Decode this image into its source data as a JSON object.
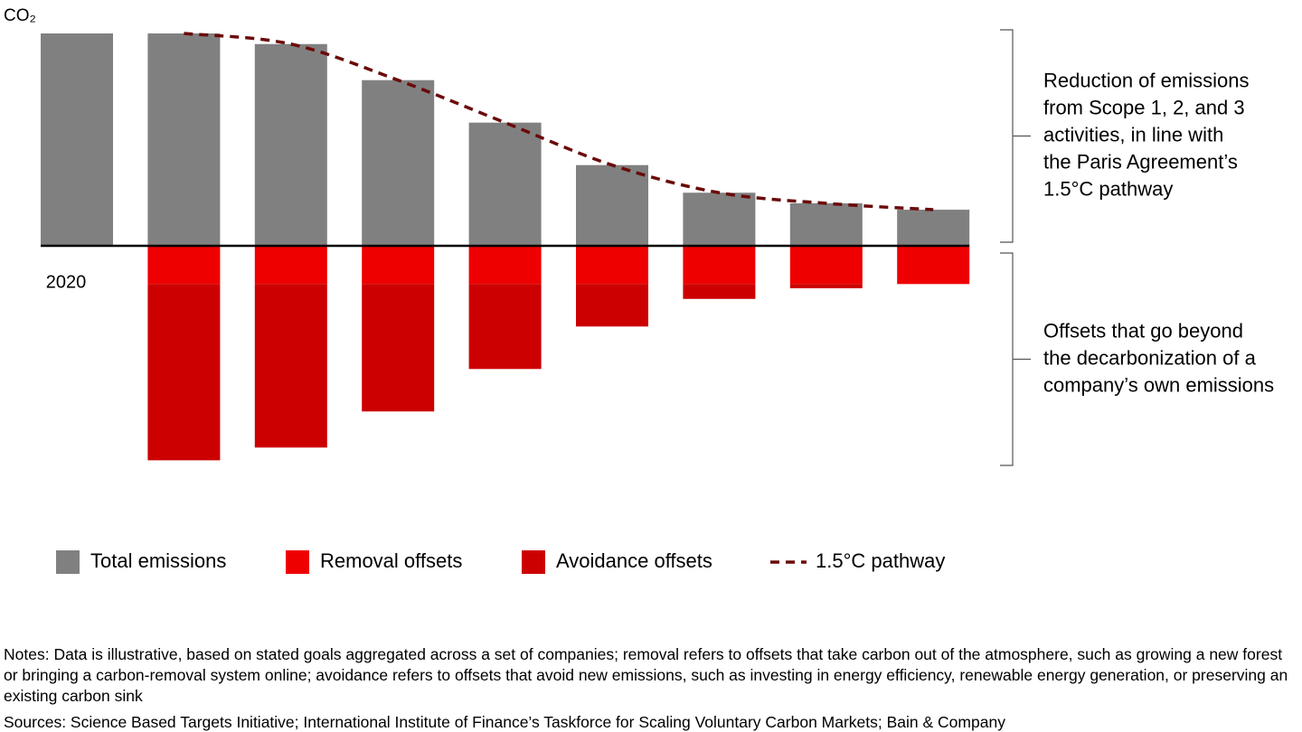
{
  "chart_data": {
    "type": "bar",
    "y_label": "CO₂",
    "categories": [
      "2020",
      null,
      null,
      null,
      null,
      null,
      null,
      null,
      null
    ],
    "series": [
      {
        "name": "Total emissions",
        "color": "#808080",
        "values": [
          100,
          100,
          95,
          78,
          58,
          38,
          25,
          20,
          17
        ]
      },
      {
        "name": "Removal offsets",
        "color": "#ee0000",
        "values": [
          null,
          -18,
          -18,
          -18,
          -18,
          -18,
          -18,
          -18,
          -18
        ]
      },
      {
        "name": "Avoidance offsets",
        "color": "#cc0000",
        "values": [
          null,
          -83,
          -77,
          -60,
          -40,
          -20,
          -7,
          -2,
          0
        ]
      },
      {
        "name": "1.5°C pathway",
        "type": "line",
        "color": "#6b0a0a",
        "dashed": true,
        "values": [
          null,
          100,
          95,
          78,
          58,
          38,
          25,
          20,
          17
        ]
      }
    ],
    "ylim": [
      -105,
      100
    ],
    "annotations": [
      {
        "lines": [
          "Reduction of emissions",
          "from Scope 1, 2, and 3",
          "activities, in line with",
          "the Paris Agreement’s",
          "1.5°C pathway"
        ]
      },
      {
        "lines": [
          "Offsets that go beyond",
          "the decarbonization of a",
          "company’s own emissions"
        ]
      }
    ],
    "legend": "bottom",
    "notes": "Notes: Data is illustrative, based on stated goals aggregated across a set of companies; removal refers to offsets that take carbon out of the atmosphere, such as growing a new forest or bringing a carbon-removal system online; avoidance refers to offsets that avoid new emissions, such as investing in energy efficiency, renewable energy generation, or preserving an existing carbon sink",
    "sources": "Sources: Science Based Targets Initiative; International Institute of Finance’s Taskforce for Scaling Voluntary Carbon Markets; Bain & Company"
  }
}
